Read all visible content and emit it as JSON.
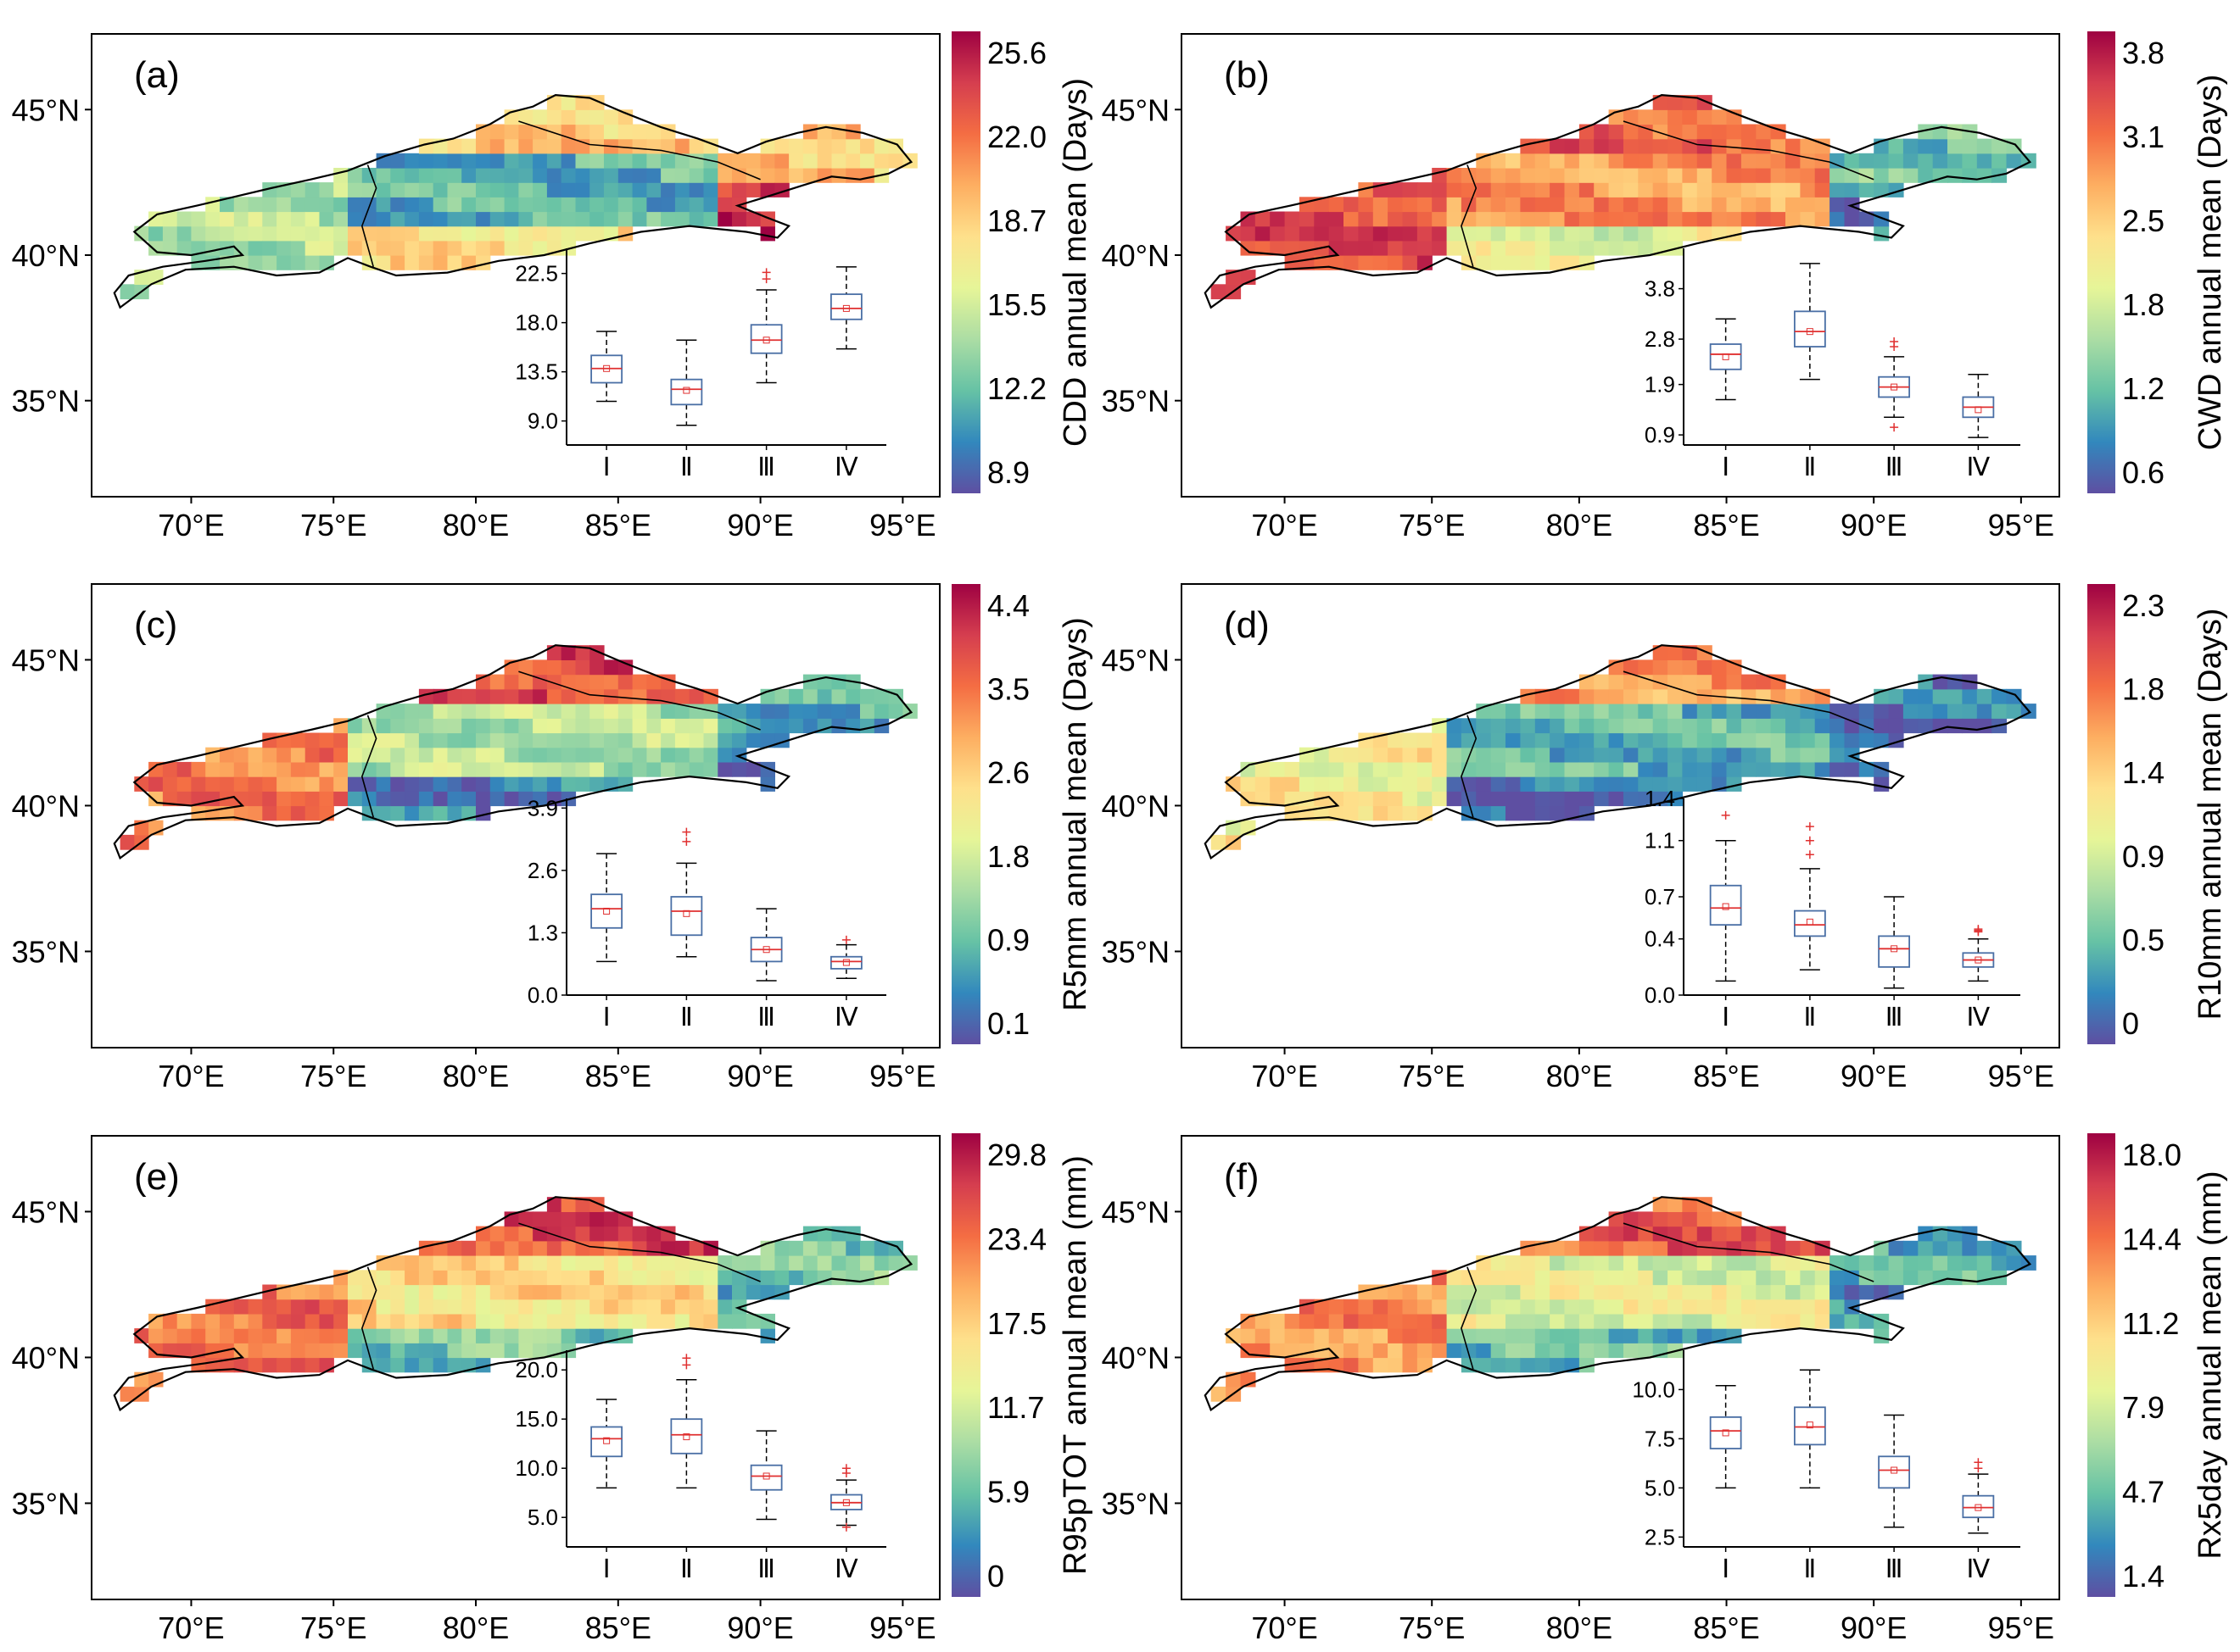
{
  "colors": {
    "ramp": [
      "#5e4fa2",
      "#3288bd",
      "#66c2a5",
      "#abdda4",
      "#e6f598",
      "#fee08b",
      "#fdae61",
      "#f46d43",
      "#d53e4f",
      "#9e0142"
    ],
    "box_outline": "#4a6fa5",
    "median": "#e03030",
    "mean_marker": "#e03030",
    "outlier": "#e03030",
    "boundary": "#000000"
  },
  "map_axes": {
    "lat_labels": [
      "45°N",
      "40°N",
      "35°N"
    ],
    "lat_values": [
      45,
      40,
      35
    ],
    "lon_labels": [
      "70°E",
      "75°E",
      "80°E",
      "85°E",
      "90°E",
      "95°E"
    ],
    "lon_values": [
      70,
      75,
      80,
      85,
      90,
      95
    ],
    "lat_range": [
      31.7,
      47.6
    ],
    "lon_range": [
      66.5,
      96.3
    ]
  },
  "chart_data": [
    {
      "type": "heatmap",
      "panel_label": "(a)",
      "colorbar_title": "CDD annual mean (Days)",
      "colorbar_ticks": [
        "25.6",
        "22.0",
        "18.7",
        "15.5",
        "12.2",
        "8.9"
      ],
      "spatial_pattern": {
        "west": 0.35,
        "tarim_north": 0.2,
        "tarim_south": 0.55,
        "east": 0.6,
        "hexi": 0.92,
        "north_tianshan": 0.6
      },
      "inset": {
        "type": "box",
        "categories": [
          "Ⅰ",
          "Ⅱ",
          "Ⅲ",
          "Ⅳ"
        ],
        "y_ticks": [
          "22.5",
          "18.0",
          "13.5",
          "9.0"
        ],
        "y_tick_values": [
          22.5,
          18.0,
          13.5,
          9.0
        ],
        "ylim": [
          6.8,
          24.8
        ],
        "boxes": [
          {
            "whisker_low": 10.8,
            "q1": 12.5,
            "median": 13.8,
            "q3": 15.0,
            "whisker_high": 17.2,
            "mean": 13.8,
            "outliers": []
          },
          {
            "whisker_low": 8.6,
            "q1": 10.5,
            "median": 11.9,
            "q3": 12.8,
            "whisker_high": 16.4,
            "mean": 11.8,
            "outliers": []
          },
          {
            "whisker_low": 12.5,
            "q1": 15.2,
            "median": 16.4,
            "q3": 17.8,
            "whisker_high": 21.0,
            "mean": 16.4,
            "outliers": [
              22.0,
              22.6
            ]
          },
          {
            "whisker_low": 15.6,
            "q1": 18.3,
            "median": 19.3,
            "q3": 20.6,
            "whisker_high": 23.1,
            "mean": 19.3,
            "outliers": []
          }
        ]
      }
    },
    {
      "type": "heatmap",
      "panel_label": "(b)",
      "colorbar_title": "CWD annual mean (Days)",
      "colorbar_ticks": [
        "3.8",
        "3.1",
        "2.5",
        "1.8",
        "1.2",
        "0.6"
      ],
      "spatial_pattern": {
        "west": 0.85,
        "tarim_north": 0.7,
        "tarim_south": 0.45,
        "east": 0.25,
        "hexi": 0.1,
        "north_tianshan": 0.8
      },
      "inset": {
        "type": "box",
        "categories": [
          "Ⅰ",
          "Ⅱ",
          "Ⅲ",
          "Ⅳ"
        ],
        "y_ticks": [
          "3.8",
          "2.8",
          "1.9",
          "0.9"
        ],
        "y_tick_values": [
          3.8,
          2.8,
          1.9,
          0.9
        ],
        "ylim": [
          0.7,
          4.6
        ],
        "boxes": [
          {
            "whisker_low": 1.6,
            "q1": 2.2,
            "median": 2.5,
            "q3": 2.7,
            "whisker_high": 3.2,
            "mean": 2.45,
            "outliers": []
          },
          {
            "whisker_low": 2.0,
            "q1": 2.65,
            "median": 2.95,
            "q3": 3.35,
            "whisker_high": 4.3,
            "mean": 2.95,
            "outliers": []
          },
          {
            "whisker_low": 1.25,
            "q1": 1.65,
            "median": 1.85,
            "q3": 2.05,
            "whisker_high": 2.45,
            "mean": 1.85,
            "outliers": [
              2.65,
              2.75,
              1.05
            ]
          },
          {
            "whisker_low": 0.85,
            "q1": 1.25,
            "median": 1.45,
            "q3": 1.65,
            "whisker_high": 2.1,
            "mean": 1.4,
            "outliers": []
          }
        ]
      }
    },
    {
      "type": "heatmap",
      "panel_label": "(c)",
      "colorbar_title": "R5mm annual mean (Days)",
      "colorbar_ticks": [
        "4.4",
        "3.5",
        "2.6",
        "1.8",
        "0.9",
        "0.1"
      ],
      "spatial_pattern": {
        "west": 0.75,
        "tarim_north": 0.35,
        "tarim_south": 0.1,
        "east": 0.18,
        "hexi": 0.08,
        "north_tianshan": 0.85
      },
      "inset": {
        "type": "box",
        "categories": [
          "Ⅰ",
          "Ⅱ",
          "Ⅲ",
          "Ⅳ"
        ],
        "y_ticks": [
          "3.9",
          "2.6",
          "1.3",
          "0.0"
        ],
        "y_tick_values": [
          3.9,
          2.6,
          1.3,
          0.0
        ],
        "ylim": [
          0.0,
          4.1
        ],
        "boxes": [
          {
            "whisker_low": 0.7,
            "q1": 1.4,
            "median": 1.8,
            "q3": 2.1,
            "whisker_high": 2.95,
            "mean": 1.75,
            "outliers": []
          },
          {
            "whisker_low": 0.8,
            "q1": 1.25,
            "median": 1.75,
            "q3": 2.05,
            "whisker_high": 2.75,
            "mean": 1.7,
            "outliers": [
              3.2,
              3.4
            ]
          },
          {
            "whisker_low": 0.3,
            "q1": 0.7,
            "median": 0.95,
            "q3": 1.2,
            "whisker_high": 1.8,
            "mean": 0.95,
            "outliers": []
          },
          {
            "whisker_low": 0.35,
            "q1": 0.55,
            "median": 0.7,
            "q3": 0.8,
            "whisker_high": 1.05,
            "mean": 0.68,
            "outliers": [
              1.15
            ]
          }
        ]
      }
    },
    {
      "type": "heatmap",
      "panel_label": "(d)",
      "colorbar_title": "R10mm annual mean (Days)",
      "colorbar_ticks": [
        "2.3",
        "1.8",
        "1.4",
        "0.9",
        "0.5",
        "0"
      ],
      "spatial_pattern": {
        "west": 0.5,
        "tarim_north": 0.2,
        "tarim_south": 0.06,
        "east": 0.08,
        "hexi": 0.05,
        "north_tianshan": 0.7
      },
      "inset": {
        "type": "box",
        "categories": [
          "Ⅰ",
          "Ⅱ",
          "Ⅲ",
          "Ⅳ"
        ],
        "y_ticks": [
          "1.4",
          "1.1",
          "0.7",
          "0.4",
          "0.0"
        ],
        "y_tick_values": [
          1.4,
          1.1,
          0.7,
          0.4,
          0.0
        ],
        "ylim": [
          0.0,
          1.4
        ],
        "boxes": [
          {
            "whisker_low": 0.1,
            "q1": 0.5,
            "median": 0.62,
            "q3": 0.78,
            "whisker_high": 1.1,
            "mean": 0.63,
            "outliers": [
              1.28
            ]
          },
          {
            "whisker_low": 0.18,
            "q1": 0.42,
            "median": 0.5,
            "q3": 0.6,
            "whisker_high": 0.9,
            "mean": 0.52,
            "outliers": [
              1.0,
              1.1,
              1.2
            ]
          },
          {
            "whisker_low": 0.05,
            "q1": 0.2,
            "median": 0.33,
            "q3": 0.42,
            "whisker_high": 0.7,
            "mean": 0.33,
            "outliers": []
          },
          {
            "whisker_low": 0.1,
            "q1": 0.2,
            "median": 0.25,
            "q3": 0.3,
            "whisker_high": 0.4,
            "mean": 0.25,
            "outliers": [
              0.45,
              0.46,
              0.47
            ]
          }
        ]
      }
    },
    {
      "type": "heatmap",
      "panel_label": "(e)",
      "colorbar_title": "R95pTOT annual mean (mm)",
      "colorbar_ticks": [
        "29.8",
        "23.4",
        "17.5",
        "11.7",
        "5.9",
        "0"
      ],
      "spatial_pattern": {
        "west": 0.78,
        "tarim_north": 0.55,
        "tarim_south": 0.25,
        "east": 0.25,
        "hexi": 0.2,
        "north_tianshan": 0.85
      },
      "inset": {
        "type": "box",
        "categories": [
          "Ⅰ",
          "Ⅱ",
          "Ⅲ",
          "Ⅳ"
        ],
        "y_ticks": [
          "20.0",
          "15.0",
          "10.0",
          "5.0"
        ],
        "y_tick_values": [
          20.0,
          15.0,
          10.0,
          5.0
        ],
        "ylim": [
          2.0,
          22.0
        ],
        "boxes": [
          {
            "whisker_low": 8.0,
            "q1": 11.2,
            "median": 13.0,
            "q3": 14.2,
            "whisker_high": 17.0,
            "mean": 12.8,
            "outliers": []
          },
          {
            "whisker_low": 8.0,
            "q1": 11.5,
            "median": 13.4,
            "q3": 15.0,
            "whisker_high": 19.0,
            "mean": 13.2,
            "outliers": [
              20.5,
              21.2
            ]
          },
          {
            "whisker_low": 4.8,
            "q1": 7.8,
            "median": 9.2,
            "q3": 10.3,
            "whisker_high": 13.8,
            "mean": 9.2,
            "outliers": []
          },
          {
            "whisker_low": 4.2,
            "q1": 5.8,
            "median": 6.5,
            "q3": 7.3,
            "whisker_high": 8.8,
            "mean": 6.5,
            "outliers": [
              9.5,
              10.0,
              4.0
            ]
          }
        ]
      }
    },
    {
      "type": "heatmap",
      "panel_label": "(f)",
      "colorbar_title": "Rx5day annual mean (mm)",
      "colorbar_ticks": [
        "18.0",
        "14.4",
        "11.2",
        "7.9",
        "4.7",
        "1.4"
      ],
      "spatial_pattern": {
        "west": 0.72,
        "tarim_north": 0.45,
        "tarim_south": 0.22,
        "east": 0.2,
        "hexi": 0.12,
        "north_tianshan": 0.8
      },
      "inset": {
        "type": "box",
        "categories": [
          "Ⅰ",
          "Ⅱ",
          "Ⅲ",
          "Ⅳ"
        ],
        "y_ticks": [
          "10.0",
          "7.5",
          "5.0",
          "2.5"
        ],
        "y_tick_values": [
          10.0,
          7.5,
          5.0,
          2.5
        ],
        "ylim": [
          2.0,
          12.0
        ],
        "boxes": [
          {
            "whisker_low": 5.0,
            "q1": 7.0,
            "median": 7.9,
            "q3": 8.6,
            "whisker_high": 10.2,
            "mean": 7.8,
            "outliers": []
          },
          {
            "whisker_low": 5.0,
            "q1": 7.2,
            "median": 8.1,
            "q3": 9.1,
            "whisker_high": 11.0,
            "mean": 8.2,
            "outliers": []
          },
          {
            "whisker_low": 3.0,
            "q1": 5.0,
            "median": 5.9,
            "q3": 6.6,
            "whisker_high": 8.7,
            "mean": 5.9,
            "outliers": []
          },
          {
            "whisker_low": 2.7,
            "q1": 3.5,
            "median": 4.0,
            "q3": 4.6,
            "whisker_high": 5.7,
            "mean": 4.0,
            "outliers": [
              6.0,
              6.3
            ]
          }
        ]
      }
    }
  ]
}
